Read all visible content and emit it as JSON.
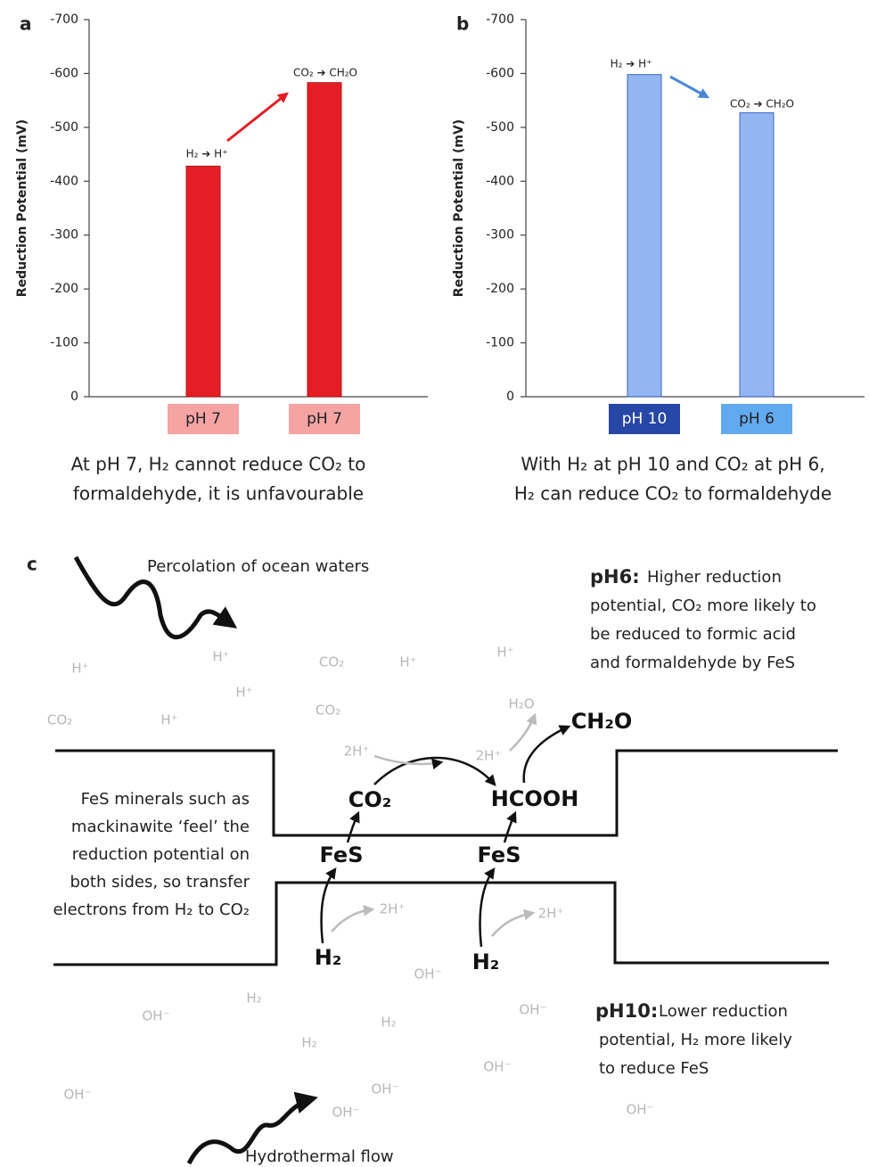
{
  "chart_data": [
    {
      "type": "bar",
      "panel_label": "a",
      "y_label": "Reduction Potential (mV)",
      "categories": [
        "pH 7",
        "pH 7"
      ],
      "values": [
        -428,
        -583
      ],
      "color": "#e51e25",
      "bar_edge_color": "#b01418",
      "category_colors": [
        "#f5a3a3",
        "#f5a3a3"
      ],
      "category_text_colors": [
        "#222222",
        "#222222"
      ],
      "ylim": [
        0,
        -700
      ],
      "yticks": [
        0,
        -100,
        -200,
        -300,
        -400,
        -500,
        -600,
        -700
      ],
      "annotations": [
        "H₂ ➔ H⁺",
        "CO₂ ➔ CH₂O"
      ],
      "arrow_color": "#e51e25",
      "caption": [
        "At pH 7, H₂ cannot reduce CO₂ to",
        "formaldehyde, it is unfavourable"
      ]
    },
    {
      "type": "bar",
      "panel_label": "b",
      "y_label": "Reduction Potential (mV)",
      "categories": [
        "pH 10",
        "pH 6"
      ],
      "values": [
        -598,
        -527
      ],
      "color": "#93b6f2",
      "bar_edge_color": "#3b66c4",
      "category_colors": [
        "#2747a6",
        "#62aaf0"
      ],
      "category_text_colors": [
        "#ffffff",
        "#222222"
      ],
      "ylim": [
        0,
        -700
      ],
      "yticks": [
        0,
        -100,
        -200,
        -300,
        -400,
        -500,
        -600,
        -700
      ],
      "annotations": [
        "H₂ ➔ H⁺",
        "CO₂ ➔ CH₂O"
      ],
      "arrow_color": "#4a86d8",
      "caption": [
        "With H₂ at pH 10 and CO₂ at pH 6,",
        "H₂ can reduce CO₂  to formaldehyde"
      ]
    }
  ],
  "diagram": {
    "panel_label": "c",
    "top_flow": "Percolation of ocean waters",
    "bottom_flow": "Hydrothermal flow",
    "ph6_heading": "pH6:",
    "ph6_lines": [
      "Higher reduction",
      "potential, CO₂ more likely to",
      "be reduced to formic acid",
      "and formaldehyde by FeS"
    ],
    "ph10_heading": "pH10:",
    "ph10_lines": [
      "Lower reduction",
      "potential, H₂ more likely",
      "to reduce FeS"
    ],
    "fes_note": [
      "FeS minerals such as",
      "mackinawite ‘feel’ the",
      "reduction potential on",
      "both sides, so transfer",
      "electrons from H₂ to CO₂"
    ],
    "species": [
      "H⁺",
      "H⁺",
      "H⁺",
      "H⁺",
      "H⁺",
      "H⁺",
      "CO₂",
      "CO₂",
      "CO₂",
      "H₂O",
      "2H⁺",
      "2H⁺",
      "2H⁺",
      "2H⁺",
      "OH⁻",
      "OH⁻",
      "OH⁻",
      "OH⁻",
      "OH⁻",
      "OH⁻",
      "OH⁻",
      "OH⁻",
      "H₂",
      "H₂",
      "H₂"
    ],
    "molecules": [
      "CO₂",
      "HCOOH",
      "FeS",
      "FeS",
      "H₂",
      "H₂",
      "CH₂O"
    ]
  }
}
